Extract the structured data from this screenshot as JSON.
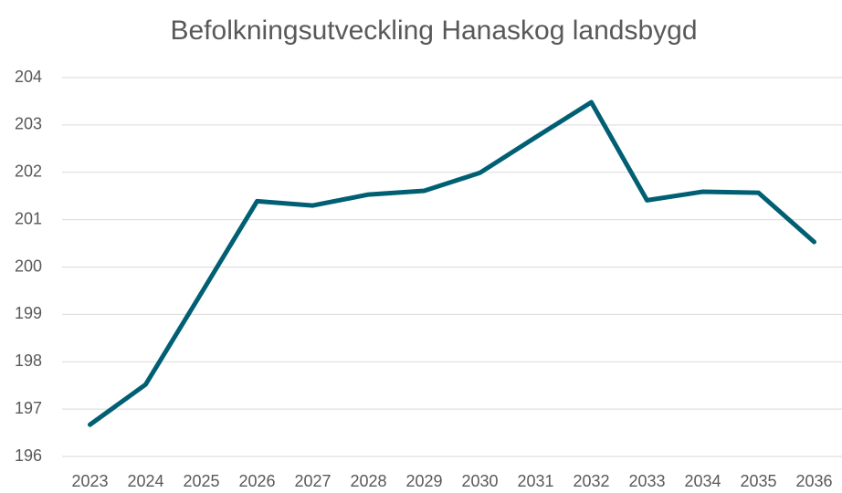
{
  "chart_data": {
    "type": "line",
    "title": "Befolkningsutveckling Hanaskog landsbygd",
    "categories": [
      "2023",
      "2024",
      "2025",
      "2026",
      "2027",
      "2028",
      "2029",
      "2030",
      "2031",
      "2032",
      "2033",
      "2034",
      "2035",
      "2036"
    ],
    "values": [
      196.67,
      197.52,
      199.45,
      201.39,
      201.3,
      201.53,
      201.61,
      201.99,
      202.74,
      203.48,
      201.41,
      201.59,
      201.57,
      200.53
    ],
    "color": "#005f73",
    "ylim": [
      196,
      204
    ],
    "yticks": [
      196,
      197,
      198,
      199,
      200,
      201,
      202,
      203,
      204
    ],
    "grid": true
  }
}
